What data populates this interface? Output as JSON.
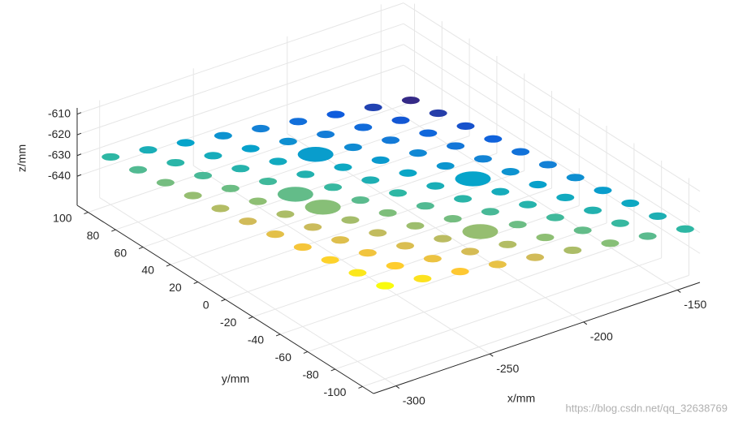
{
  "chart_data": {
    "type": "scatter3d",
    "x_label": "x/mm",
    "y_label": "y/mm",
    "z_label": "z/mm",
    "watermark": "https://blog.csdn.net/qq_32638769",
    "xlim": [
      -312,
      -138
    ],
    "ylim": [
      -108,
      108
    ],
    "zlim": [
      -654,
      -607
    ],
    "xticks": [
      -300,
      -250,
      -200,
      -150
    ],
    "yticks": [
      -100,
      -80,
      -60,
      -40,
      -20,
      0,
      20,
      40,
      60,
      80,
      100
    ],
    "zticks": [
      -640,
      -630,
      -620,
      -610
    ],
    "grid": true,
    "colormap": [
      "#352a87",
      "#0f5cdd",
      "#1481d6",
      "#06a4ca",
      "#2eb7a4",
      "#87bf77",
      "#d1bb59",
      "#fec832",
      "#f9fb0e"
    ],
    "clim": [
      -653,
      -609
    ],
    "x": [
      -300,
      -300,
      -300,
      -300,
      -300,
      -300,
      -300,
      -300,
      -300,
      -300,
      -300,
      -280,
      -280,
      -280,
      -280,
      -280,
      -280,
      -280,
      -280,
      -280,
      -280,
      -280,
      -260,
      -260,
      -260,
      -260,
      -260,
      -260,
      -260,
      -260,
      -260,
      -260,
      -260,
      -240,
      -240,
      -240,
      -240,
      -240,
      -240,
      -240,
      -240,
      -240,
      -240,
      -240,
      -220,
      -220,
      -220,
      -220,
      -220,
      -220,
      -220,
      -220,
      -220,
      -220,
      -220,
      -200,
      -200,
      -200,
      -200,
      -200,
      -200,
      -200,
      -200,
      -200,
      -200,
      -200,
      -180,
      -180,
      -180,
      -180,
      -180,
      -180,
      -180,
      -180,
      -180,
      -180,
      -180,
      -160,
      -160,
      -160,
      -160,
      -160,
      -160,
      -160,
      -160,
      -160,
      -160,
      -160,
      -140,
      -140,
      -140,
      -140,
      -140,
      -140,
      -140,
      -140,
      -140,
      -140,
      -140
    ],
    "y": [
      -100,
      -80,
      -60,
      -40,
      -20,
      0,
      20,
      40,
      60,
      80,
      100,
      -100,
      -80,
      -60,
      -40,
      -20,
      0,
      20,
      40,
      60,
      80,
      100,
      -100,
      -80,
      -60,
      -40,
      -20,
      0,
      20,
      40,
      60,
      80,
      100,
      -100,
      -80,
      -60,
      -40,
      -20,
      0,
      20,
      40,
      60,
      80,
      100,
      -100,
      -80,
      -60,
      -40,
      -20,
      0,
      20,
      40,
      60,
      80,
      100,
      -100,
      -80,
      -60,
      -40,
      -20,
      0,
      20,
      40,
      60,
      80,
      100,
      -100,
      -80,
      -60,
      -40,
      -20,
      0,
      20,
      40,
      60,
      80,
      100,
      -100,
      -80,
      -60,
      -40,
      -20,
      0,
      20,
      40,
      60,
      80,
      100,
      -100,
      -80,
      -60,
      -40,
      -20,
      0,
      20,
      40,
      60,
      80,
      100
    ],
    "z": [
      -609,
      -611.2,
      -613.4,
      -615.6,
      -617.8,
      -620,
      -622.2,
      -624.4,
      -626.6,
      -628.8,
      -631,
      -611.75,
      -613.95,
      -616.15,
      -618.35,
      -620.55,
      -622.75,
      -624.95,
      -627.15,
      -629.35,
      -631.55,
      -633.75,
      -614.5,
      -616.7,
      -618.9,
      -621.1,
      -623.3,
      -625.5,
      -627.7,
      -629.9,
      -632.1,
      -634.3,
      -636.5,
      -617.25,
      -619.45,
      -621.65,
      -623.85,
      -626.05,
      -628.25,
      -630.45,
      -632.65,
      -634.85,
      -637.05,
      -639.25,
      -620,
      -622.2,
      -624.4,
      -626.6,
      -628.8,
      -631,
      -633.2,
      -635.4,
      -637.6,
      -639.8,
      -642,
      -622.75,
      -624.95,
      -627.15,
      -629.35,
      -631.55,
      -633.75,
      -635.95,
      -638.15,
      -640.35,
      -642.55,
      -644.75,
      -625.5,
      -627.7,
      -629.9,
      -632.1,
      -634.3,
      -636.5,
      -638.7,
      -640.9,
      -643.1,
      -645.3,
      -647.5,
      -628.25,
      -630.45,
      -632.65,
      -634.85,
      -637.05,
      -639.25,
      -641.45,
      -643.65,
      -645.85,
      -648.05,
      -650.25,
      -631,
      -633.2,
      -635.4,
      -637.6,
      -639.8,
      -642,
      -644.2,
      -646.4,
      -648.6,
      -650.8,
      -653
    ],
    "sizes": [
      1,
      1,
      1,
      1,
      1,
      1,
      1,
      1,
      1,
      1,
      1,
      1,
      1,
      1,
      1,
      1,
      1,
      1,
      1,
      1,
      1,
      1,
      1,
      1,
      1,
      1,
      1,
      2,
      2,
      1,
      1,
      1,
      1,
      1,
      1,
      1,
      1,
      1,
      1,
      1,
      1,
      1,
      1,
      1,
      1,
      1,
      2,
      1,
      1,
      1,
      1,
      1,
      2,
      1,
      1,
      1,
      1,
      1,
      1,
      1,
      1,
      1,
      1,
      1,
      1,
      1,
      1,
      1,
      1,
      1,
      1,
      2,
      1,
      1,
      1,
      1,
      1,
      1,
      1,
      1,
      1,
      1,
      1,
      1,
      1,
      1,
      1,
      1,
      1,
      1,
      1,
      1,
      1,
      1,
      1,
      1,
      1,
      1,
      1
    ]
  }
}
